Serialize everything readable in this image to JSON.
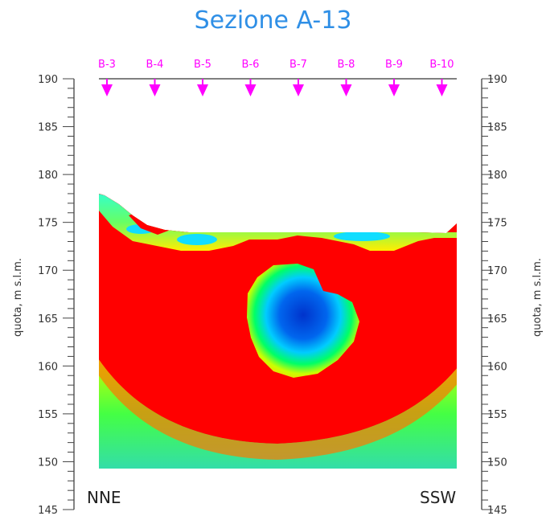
{
  "title": "Sezione A-13",
  "colors": {
    "title": "#2f8fe6",
    "boreholes": "#ff00ff",
    "high": "#ff0000",
    "low": "#0033cc",
    "mid": "#00ff44",
    "lowest_bottom": "#33ddaa"
  },
  "chart_data": {
    "type": "heatmap",
    "title": "Sezione A-13",
    "ylabel_left": "quota, m s.l.m.",
    "ylabel_right": "quota, m s.l.m.",
    "ylim": [
      145,
      190
    ],
    "y_ticks": [
      190,
      185,
      180,
      175,
      170,
      165,
      160,
      155,
      150,
      145
    ],
    "grid": false,
    "colormap": [
      "#0033cc",
      "#00ccff",
      "#00ff44",
      "#ffff00",
      "#ff0000"
    ],
    "boreholes": [
      "B-3",
      "B-4",
      "B-5",
      "B-6",
      "B-7",
      "B-8",
      "B-9",
      "B-10"
    ],
    "left_label": "NNE",
    "right_label": "SSW"
  }
}
